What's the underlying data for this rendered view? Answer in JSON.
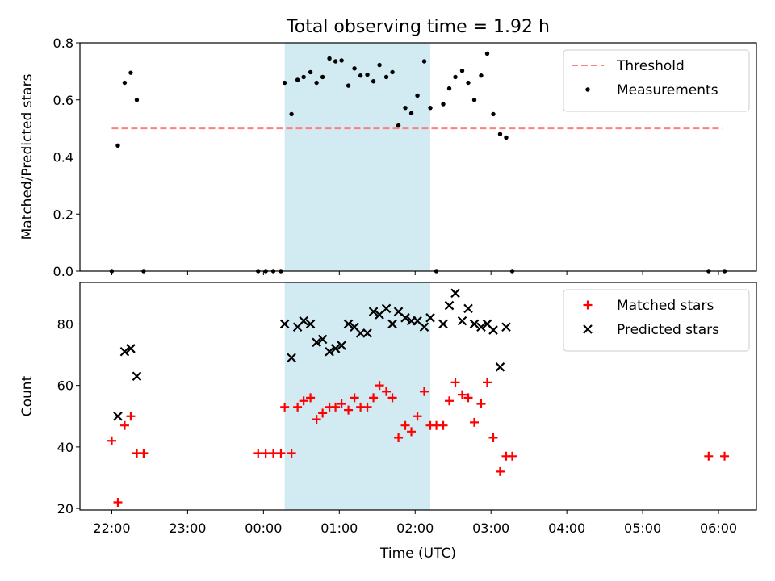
{
  "chart_data": {
    "type": "scatter",
    "title": "Total observing time = 1.92 h",
    "xlabel": "Time (UTC)",
    "x_ticks": [
      "22:00",
      "23:00",
      "00:00",
      "01:00",
      "02:00",
      "03:00",
      "04:00",
      "05:00",
      "06:00"
    ],
    "x_range_hours": [
      -0.42,
      8.5
    ],
    "observing_window_hours": [
      2.28,
      4.2
    ],
    "window_color": "#add8e6",
    "panels": [
      {
        "ylabel": "Matched/Predicted stars",
        "ylim": [
          0,
          0.8
        ],
        "yticks": [
          "0.0",
          "0.2",
          "0.4",
          "0.6",
          "0.8"
        ],
        "yticks_values": [
          0,
          0.2,
          0.4,
          0.6,
          0.8
        ],
        "legend_position": "upper right",
        "threshold": {
          "name": "Threshold",
          "value": 0.5,
          "x_start": 0,
          "x_end": 8.05,
          "color": "#ff7f7f"
        },
        "series": [
          {
            "name": "Measurements",
            "marker": "dot",
            "color": "#000000",
            "points": [
              [
                0.0,
                0.0
              ],
              [
                0.08,
                0.44
              ],
              [
                0.17,
                0.66
              ],
              [
                0.25,
                0.695
              ],
              [
                0.33,
                0.6
              ],
              [
                0.42,
                0.0
              ],
              [
                1.93,
                0.0
              ],
              [
                2.03,
                0.0
              ],
              [
                2.13,
                0.0
              ],
              [
                2.23,
                0.0
              ],
              [
                2.28,
                0.66
              ],
              [
                2.37,
                0.55
              ],
              [
                2.45,
                0.67
              ],
              [
                2.53,
                0.68
              ],
              [
                2.62,
                0.697
              ],
              [
                2.7,
                0.66
              ],
              [
                2.78,
                0.68
              ],
              [
                2.87,
                0.745
              ],
              [
                2.95,
                0.735
              ],
              [
                3.03,
                0.738
              ],
              [
                3.12,
                0.65
              ],
              [
                3.2,
                0.71
              ],
              [
                3.28,
                0.685
              ],
              [
                3.37,
                0.688
              ],
              [
                3.45,
                0.665
              ],
              [
                3.53,
                0.722
              ],
              [
                3.62,
                0.68
              ],
              [
                3.7,
                0.697
              ],
              [
                3.78,
                0.51
              ],
              [
                3.87,
                0.572
              ],
              [
                3.95,
                0.553
              ],
              [
                4.03,
                0.615
              ],
              [
                4.12,
                0.735
              ],
              [
                4.2,
                0.572
              ],
              [
                4.28,
                0.0
              ],
              [
                4.37,
                0.585
              ],
              [
                4.45,
                0.64
              ],
              [
                4.53,
                0.68
              ],
              [
                4.62,
                0.702
              ],
              [
                4.7,
                0.66
              ],
              [
                4.78,
                0.6
              ],
              [
                4.87,
                0.685
              ],
              [
                4.95,
                0.762
              ],
              [
                5.03,
                0.55
              ],
              [
                5.12,
                0.48
              ],
              [
                5.2,
                0.468
              ],
              [
                5.28,
                0.0
              ],
              [
                7.87,
                0.0
              ],
              [
                8.08,
                0.0
              ]
            ]
          }
        ]
      },
      {
        "ylabel": "Count",
        "ylim": [
          19.5,
          93.5
        ],
        "yticks": [
          "20",
          "40",
          "60",
          "80"
        ],
        "yticks_values": [
          20,
          40,
          60,
          80
        ],
        "legend_position": "upper right",
        "series": [
          {
            "name": "Matched stars",
            "marker": "plus",
            "color": "#ff0000",
            "points": [
              [
                0.0,
                42
              ],
              [
                0.08,
                22
              ],
              [
                0.17,
                47
              ],
              [
                0.25,
                50
              ],
              [
                0.33,
                38
              ],
              [
                0.42,
                38
              ],
              [
                1.93,
                38
              ],
              [
                2.03,
                38
              ],
              [
                2.13,
                38
              ],
              [
                2.23,
                38
              ],
              [
                2.28,
                53
              ],
              [
                2.37,
                38
              ],
              [
                2.45,
                53
              ],
              [
                2.53,
                55
              ],
              [
                2.62,
                56
              ],
              [
                2.7,
                49
              ],
              [
                2.78,
                51
              ],
              [
                2.87,
                53
              ],
              [
                2.95,
                53
              ],
              [
                3.03,
                54
              ],
              [
                3.12,
                52
              ],
              [
                3.2,
                56
              ],
              [
                3.28,
                53
              ],
              [
                3.37,
                53
              ],
              [
                3.45,
                56
              ],
              [
                3.53,
                60
              ],
              [
                3.62,
                58
              ],
              [
                3.7,
                56
              ],
              [
                3.78,
                43
              ],
              [
                3.87,
                47
              ],
              [
                3.95,
                45
              ],
              [
                4.03,
                50
              ],
              [
                4.12,
                58
              ],
              [
                4.2,
                47
              ],
              [
                4.28,
                47
              ],
              [
                4.37,
                47
              ],
              [
                4.45,
                55
              ],
              [
                4.53,
                61
              ],
              [
                4.62,
                57
              ],
              [
                4.7,
                56
              ],
              [
                4.78,
                48
              ],
              [
                4.87,
                54
              ],
              [
                4.95,
                61
              ],
              [
                5.03,
                43
              ],
              [
                5.12,
                32
              ],
              [
                5.2,
                37
              ],
              [
                5.28,
                37
              ],
              [
                7.87,
                37
              ],
              [
                8.08,
                37
              ]
            ]
          },
          {
            "name": "Predicted stars",
            "marker": "x",
            "color": "#000000",
            "points": [
              [
                0.08,
                50
              ],
              [
                0.17,
                71
              ],
              [
                0.25,
                72
              ],
              [
                0.33,
                63
              ],
              [
                2.28,
                80
              ],
              [
                2.37,
                69
              ],
              [
                2.45,
                79
              ],
              [
                2.53,
                81
              ],
              [
                2.62,
                80
              ],
              [
                2.7,
                74
              ],
              [
                2.78,
                75
              ],
              [
                2.87,
                71
              ],
              [
                2.95,
                72
              ],
              [
                3.03,
                73
              ],
              [
                3.12,
                80
              ],
              [
                3.2,
                79
              ],
              [
                3.28,
                77
              ],
              [
                3.37,
                77
              ],
              [
                3.45,
                84
              ],
              [
                3.53,
                83
              ],
              [
                3.62,
                85
              ],
              [
                3.7,
                80
              ],
              [
                3.78,
                84
              ],
              [
                3.87,
                82
              ],
              [
                3.95,
                81
              ],
              [
                4.03,
                81
              ],
              [
                4.12,
                79
              ],
              [
                4.2,
                82
              ],
              [
                4.37,
                80
              ],
              [
                4.45,
                86
              ],
              [
                4.53,
                90
              ],
              [
                4.62,
                81
              ],
              [
                4.7,
                85
              ],
              [
                4.78,
                80
              ],
              [
                4.87,
                79
              ],
              [
                4.95,
                80
              ],
              [
                5.03,
                78
              ],
              [
                5.12,
                66
              ],
              [
                5.2,
                79
              ]
            ]
          }
        ]
      }
    ]
  }
}
